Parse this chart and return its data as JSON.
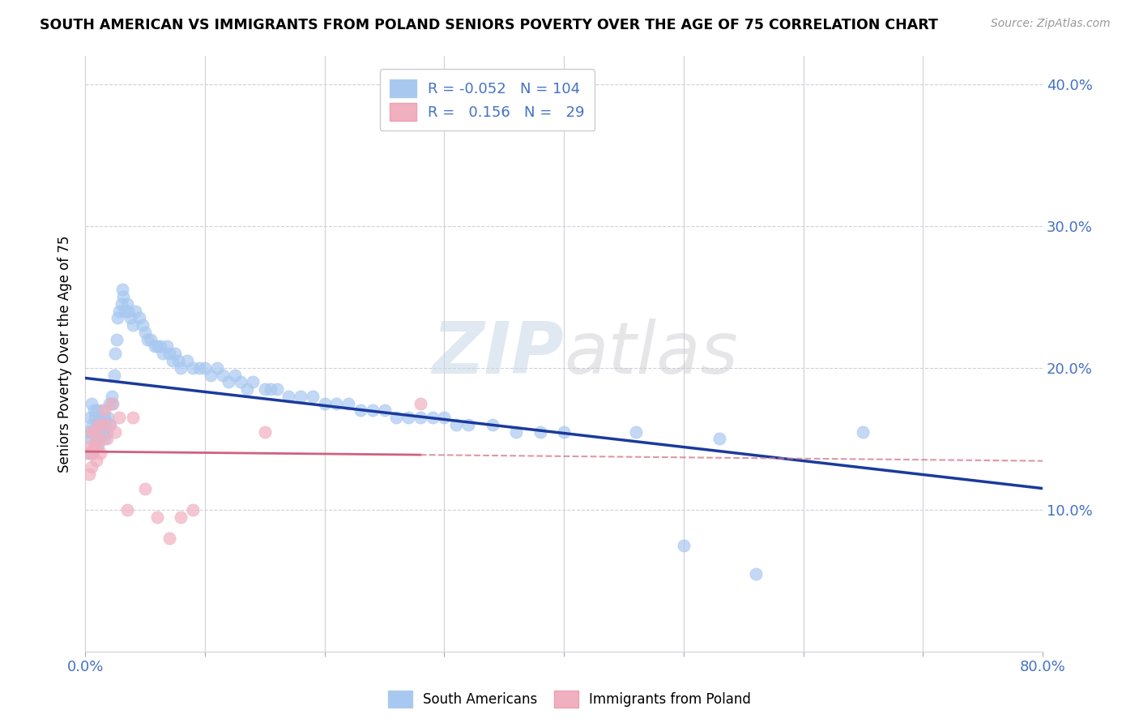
{
  "title": "SOUTH AMERICAN VS IMMIGRANTS FROM POLAND SENIORS POVERTY OVER THE AGE OF 75 CORRELATION CHART",
  "source": "Source: ZipAtlas.com",
  "ylabel": "Seniors Poverty Over the Age of 75",
  "xlim": [
    0.0,
    0.8
  ],
  "ylim": [
    0.0,
    0.42
  ],
  "R_blue": -0.052,
  "N_blue": 104,
  "R_pink": 0.156,
  "N_pink": 29,
  "blue_color": "#a8c8f0",
  "pink_color": "#f0b0c0",
  "blue_line_color": "#1a3a9c",
  "pink_line_color": "#d06080",
  "pink_dash_color": "#d08090",
  "watermark_zip": "ZIP",
  "watermark_atlas": "atlas",
  "legend_labels": [
    "South Americans",
    "Immigrants from Poland"
  ],
  "blue_scatter_x": [
    0.002,
    0.003,
    0.004,
    0.004,
    0.005,
    0.005,
    0.006,
    0.006,
    0.007,
    0.007,
    0.008,
    0.008,
    0.009,
    0.009,
    0.01,
    0.01,
    0.011,
    0.011,
    0.012,
    0.012,
    0.013,
    0.013,
    0.014,
    0.014,
    0.015,
    0.015,
    0.016,
    0.016,
    0.017,
    0.018,
    0.019,
    0.02,
    0.021,
    0.022,
    0.023,
    0.024,
    0.025,
    0.026,
    0.027,
    0.028,
    0.03,
    0.031,
    0.032,
    0.033,
    0.035,
    0.036,
    0.038,
    0.04,
    0.042,
    0.045,
    0.048,
    0.05,
    0.052,
    0.055,
    0.058,
    0.06,
    0.063,
    0.065,
    0.068,
    0.07,
    0.073,
    0.075,
    0.078,
    0.08,
    0.085,
    0.09,
    0.095,
    0.1,
    0.105,
    0.11,
    0.115,
    0.12,
    0.125,
    0.13,
    0.135,
    0.14,
    0.15,
    0.155,
    0.16,
    0.17,
    0.18,
    0.19,
    0.2,
    0.21,
    0.22,
    0.23,
    0.24,
    0.25,
    0.26,
    0.27,
    0.28,
    0.29,
    0.3,
    0.31,
    0.32,
    0.34,
    0.36,
    0.38,
    0.4,
    0.46,
    0.5,
    0.53,
    0.56,
    0.65
  ],
  "blue_scatter_y": [
    0.155,
    0.14,
    0.15,
    0.165,
    0.155,
    0.175,
    0.16,
    0.14,
    0.155,
    0.17,
    0.145,
    0.165,
    0.15,
    0.16,
    0.155,
    0.17,
    0.15,
    0.145,
    0.16,
    0.155,
    0.15,
    0.165,
    0.155,
    0.17,
    0.165,
    0.155,
    0.15,
    0.165,
    0.16,
    0.155,
    0.165,
    0.175,
    0.16,
    0.18,
    0.175,
    0.195,
    0.21,
    0.22,
    0.235,
    0.24,
    0.245,
    0.255,
    0.25,
    0.24,
    0.245,
    0.24,
    0.235,
    0.23,
    0.24,
    0.235,
    0.23,
    0.225,
    0.22,
    0.22,
    0.215,
    0.215,
    0.215,
    0.21,
    0.215,
    0.21,
    0.205,
    0.21,
    0.205,
    0.2,
    0.205,
    0.2,
    0.2,
    0.2,
    0.195,
    0.2,
    0.195,
    0.19,
    0.195,
    0.19,
    0.185,
    0.19,
    0.185,
    0.185,
    0.185,
    0.18,
    0.18,
    0.18,
    0.175,
    0.175,
    0.175,
    0.17,
    0.17,
    0.17,
    0.165,
    0.165,
    0.165,
    0.165,
    0.165,
    0.16,
    0.16,
    0.16,
    0.155,
    0.155,
    0.155,
    0.155,
    0.075,
    0.15,
    0.055,
    0.155
  ],
  "pink_scatter_x": [
    0.002,
    0.003,
    0.004,
    0.005,
    0.005,
    0.006,
    0.007,
    0.008,
    0.009,
    0.01,
    0.011,
    0.012,
    0.013,
    0.015,
    0.016,
    0.018,
    0.02,
    0.022,
    0.025,
    0.028,
    0.035,
    0.04,
    0.05,
    0.06,
    0.07,
    0.08,
    0.09,
    0.15,
    0.28
  ],
  "pink_scatter_y": [
    0.14,
    0.125,
    0.145,
    0.155,
    0.13,
    0.14,
    0.155,
    0.145,
    0.135,
    0.145,
    0.16,
    0.15,
    0.14,
    0.16,
    0.17,
    0.15,
    0.16,
    0.175,
    0.155,
    0.165,
    0.1,
    0.165,
    0.115,
    0.095,
    0.08,
    0.095,
    0.1,
    0.155,
    0.175
  ]
}
